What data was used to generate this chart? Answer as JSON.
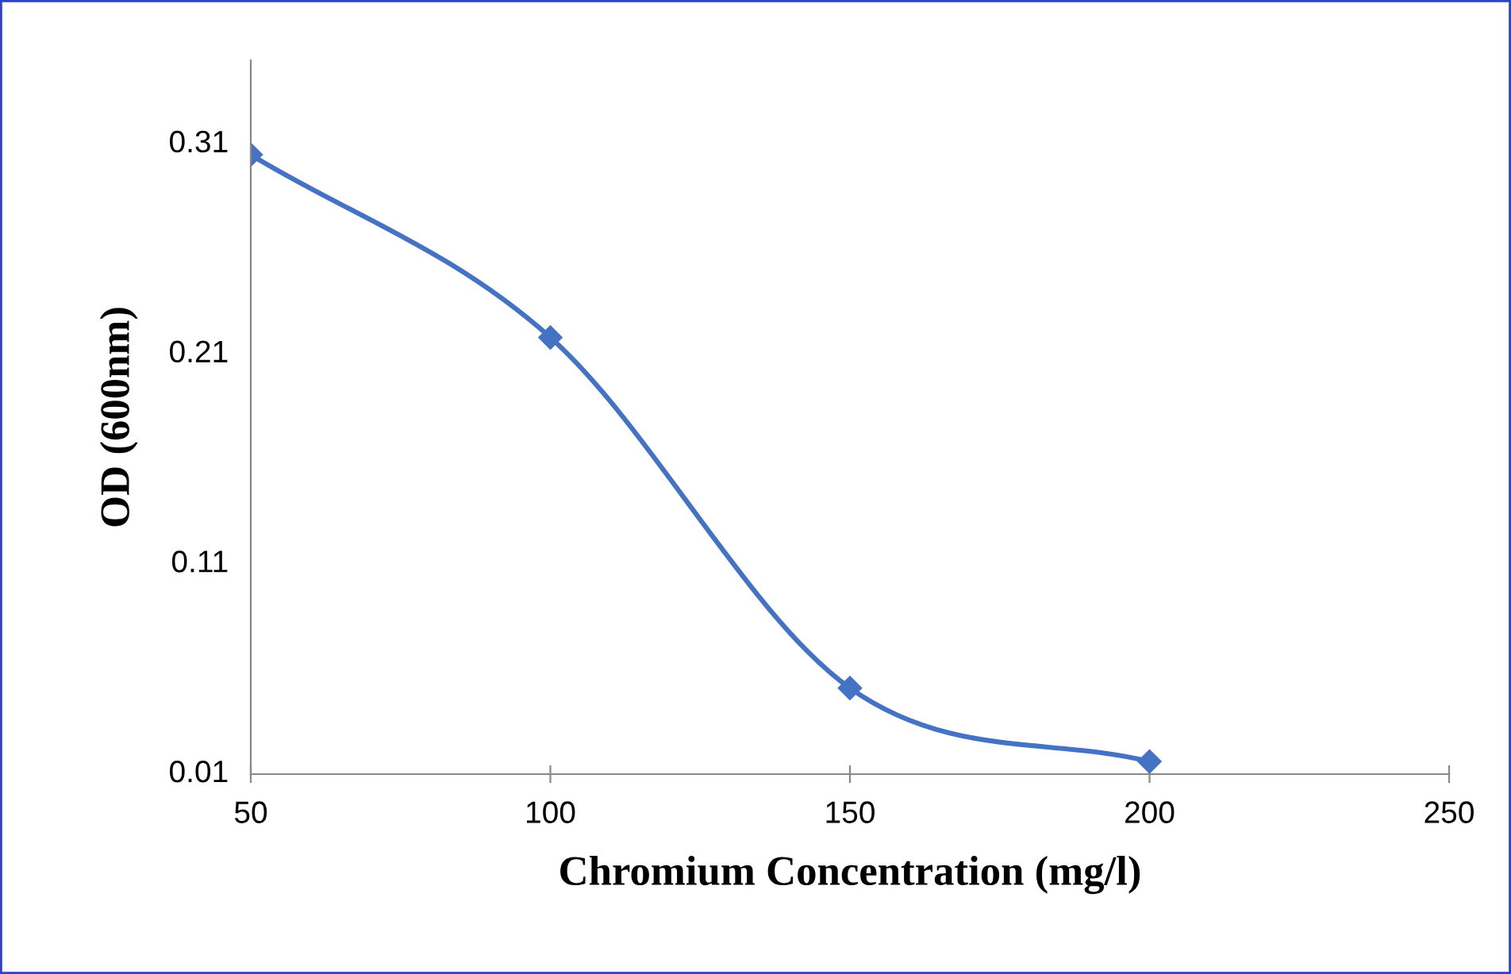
{
  "chart_data": {
    "type": "line",
    "xlabel": "Chromium Concentration (mg/l)",
    "ylabel": "OD (600nm)",
    "x": [
      50,
      100,
      150,
      200
    ],
    "series": [
      {
        "color": "#4472c4",
        "values": [
          0.305,
          0.218,
          0.051,
          0.016
        ]
      }
    ],
    "xlim": [
      50,
      250
    ],
    "xticks": [
      50,
      100,
      150,
      200,
      250
    ],
    "ylim": [
      0.01,
      0.35
    ],
    "yticks": [
      0.01,
      0.11,
      0.21,
      0.31
    ],
    "marker": "diamond",
    "line_style": "solid",
    "grid": false
  }
}
